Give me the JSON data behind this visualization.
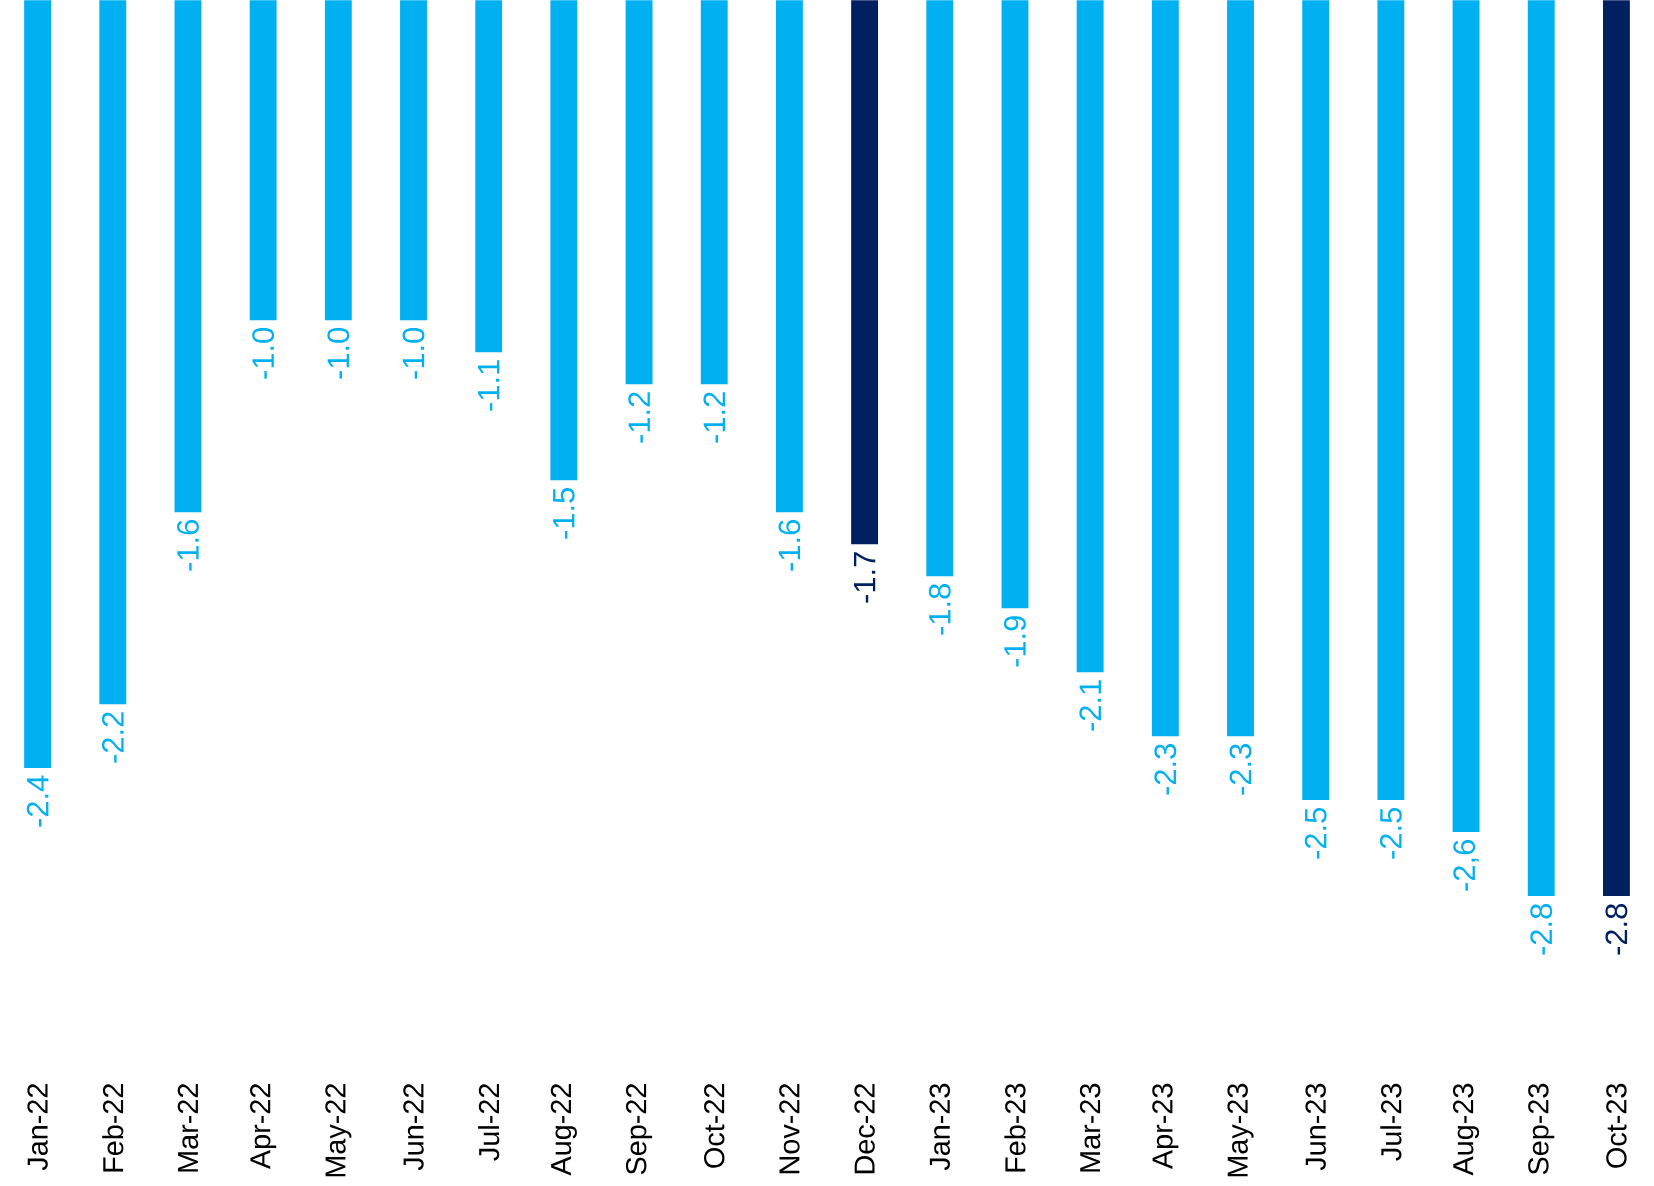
{
  "chart_data": {
    "type": "bar",
    "categories": [
      "Jan-22",
      "Feb-22",
      "Mar-22",
      "Apr-22",
      "May-22",
      "Jun-22",
      "Jul-22",
      "Aug-22",
      "Sep-22",
      "Oct-22",
      "Nov-22",
      "Dec-22",
      "Jan-23",
      "Feb-23",
      "Mar-23",
      "Apr-23",
      "May-23",
      "Jun-23",
      "Jul-23",
      "Aug-23",
      "Sep-23",
      "Oct-23"
    ],
    "values": [
      -2.4,
      -2.2,
      -1.6,
      -1.0,
      -1.0,
      -1.0,
      -1.1,
      -1.5,
      -1.2,
      -1.2,
      -1.6,
      -1.7,
      -1.8,
      -1.9,
      -2.1,
      -2.3,
      -2.3,
      -2.5,
      -2.5,
      -2.6,
      -2.8,
      -2.8
    ],
    "value_labels": [
      "-2.4",
      "-2.2",
      "-1.6",
      "-1.0",
      "-1.0",
      "-1.0",
      "-1.1",
      "-1.5",
      "-1.2",
      "-1.2",
      "-1.6",
      "-1.7",
      "-1.8",
      "-1.9",
      "-2.1",
      "-2.3",
      "-2.3",
      "-2.5",
      "-2.5",
      "-2,6",
      "-2.8",
      "-2.8"
    ],
    "colors": [
      "#00b0f0",
      "#00b0f0",
      "#00b0f0",
      "#00b0f0",
      "#00b0f0",
      "#00b0f0",
      "#00b0f0",
      "#00b0f0",
      "#00b0f0",
      "#00b0f0",
      "#00b0f0",
      "#002060",
      "#00b0f0",
      "#00b0f0",
      "#00b0f0",
      "#00b0f0",
      "#00b0f0",
      "#00b0f0",
      "#00b0f0",
      "#00b0f0",
      "#00b0f0",
      "#002060"
    ]
  }
}
